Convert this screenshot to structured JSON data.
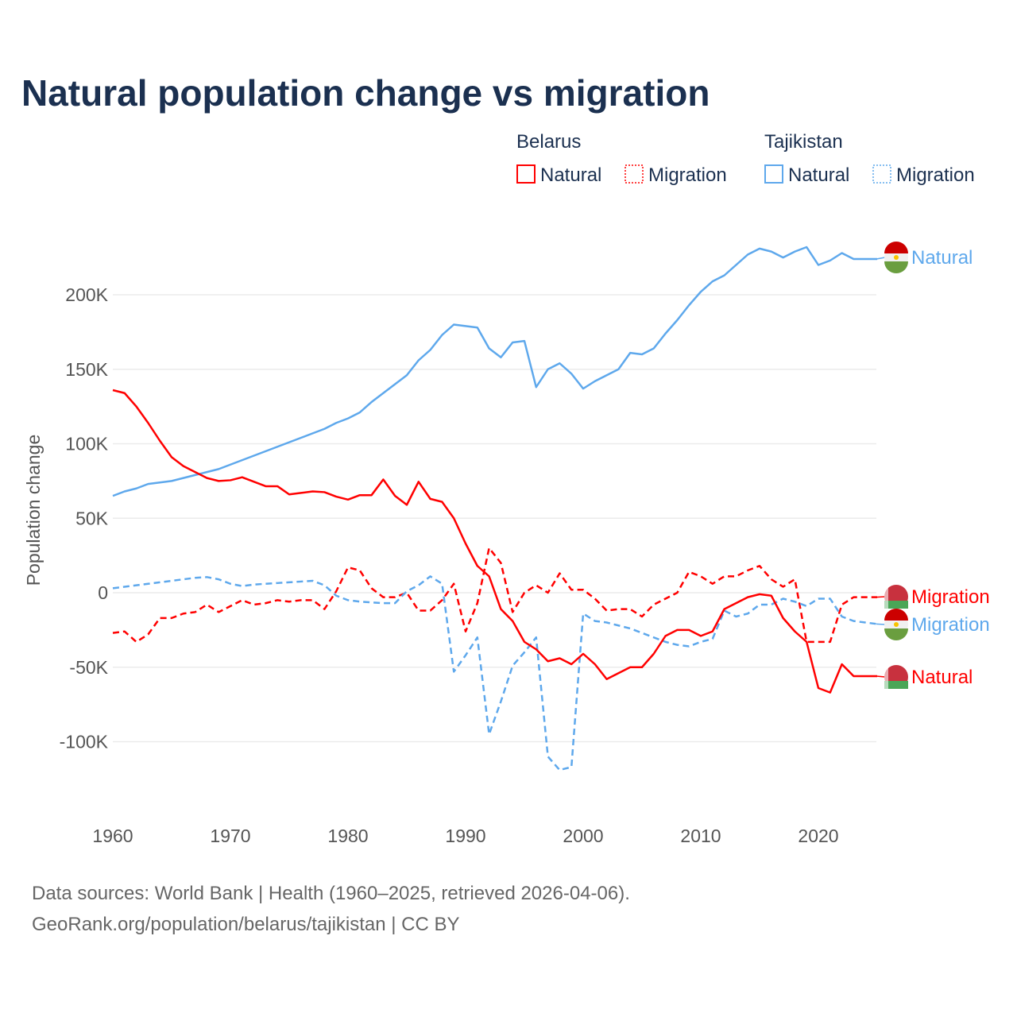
{
  "chart_data": {
    "type": "line",
    "title": "Natural population change vs migration",
    "ylabel": "Population change",
    "xlabel": "",
    "ylim": [
      -140000,
      240000
    ],
    "xlim": [
      1960,
      2025
    ],
    "yticks": [
      {
        "v": 200000,
        "label": "200K"
      },
      {
        "v": 150000,
        "label": "150K"
      },
      {
        "v": 100000,
        "label": "100K"
      },
      {
        "v": 50000,
        "label": "50K"
      },
      {
        "v": 0,
        "label": "0"
      },
      {
        "v": -50000,
        "label": "-50K"
      },
      {
        "v": -100000,
        "label": "-100K"
      }
    ],
    "xticks": [
      {
        "v": 1960,
        "label": "1960"
      },
      {
        "v": 1970,
        "label": "1970"
      },
      {
        "v": 1980,
        "label": "1980"
      },
      {
        "v": 1990,
        "label": "1990"
      },
      {
        "v": 2000,
        "label": "2000"
      },
      {
        "v": 2010,
        "label": "2010"
      },
      {
        "v": 2020,
        "label": "2020"
      }
    ],
    "grid": true,
    "legend": {
      "placement": "top-right",
      "groups": [
        {
          "country": "Belarus",
          "items": [
            "Natural",
            "Migration"
          ]
        },
        {
          "country": "Tajikistan",
          "items": [
            "Natural",
            "Migration"
          ]
        }
      ]
    },
    "x_start": 1960,
    "series": [
      {
        "name": "Tajikistan Natural",
        "country": "Tajikistan",
        "kind": "Natural",
        "end_label": "Natural",
        "color": "#5ea8ec",
        "dashed": false,
        "values": [
          65,
          68,
          70,
          73,
          74,
          75,
          77,
          79,
          81,
          83,
          86,
          89,
          92,
          95,
          98,
          101,
          104,
          107,
          110,
          114,
          117,
          121,
          128,
          134,
          140,
          146,
          156,
          163,
          173,
          180,
          179,
          178,
          164,
          158,
          168,
          169,
          138,
          150,
          154,
          147,
          137,
          142,
          146,
          150,
          161,
          160,
          164,
          174,
          183,
          193,
          202,
          209,
          213,
          220,
          227,
          231,
          229,
          225,
          229,
          232,
          220,
          223,
          228,
          224,
          224,
          224
        ]
      },
      {
        "name": "Belarus Migration",
        "country": "Belarus",
        "kind": "Migration",
        "end_label": "Migration",
        "color": "#ff0000",
        "dashed": true,
        "values": [
          -27,
          -26,
          -33,
          -28,
          -17,
          -17,
          -14,
          -13,
          -8,
          -13,
          -9,
          -5,
          -8,
          -7,
          -5,
          -6,
          -5,
          -5,
          -11,
          1,
          17,
          15,
          3,
          -3,
          -3,
          0,
          -12,
          -12,
          -5,
          6,
          -26,
          -7,
          30,
          20,
          -13,
          0,
          5,
          0,
          13,
          2,
          2,
          -4,
          -12,
          -11,
          -11,
          -16,
          -8,
          -4,
          0,
          14,
          11,
          6,
          11,
          11,
          15,
          18,
          9,
          4,
          9,
          -33,
          -33,
          -33,
          -8,
          -3,
          -3,
          -3
        ]
      },
      {
        "name": "Tajikistan Migration",
        "country": "Tajikistan",
        "kind": "Migration",
        "end_label": "Migration",
        "color": "#5ea8ec",
        "dashed": true,
        "values": [
          3,
          4,
          5,
          6,
          7,
          8,
          9,
          10,
          10.5,
          9,
          6,
          4.5,
          5.5,
          6,
          6.5,
          7,
          7.5,
          8,
          5,
          -2,
          -5,
          -6,
          -6.5,
          -7,
          -7,
          1,
          5,
          11,
          6,
          -53,
          -42,
          -30,
          -95,
          -73,
          -49,
          -40,
          -30,
          -110,
          -119,
          -117,
          -14,
          -19,
          -20,
          -22,
          -24,
          -27,
          -30,
          -33,
          -35,
          -36,
          -33,
          -31,
          -12,
          -16,
          -14,
          -8,
          -8,
          -4,
          -6,
          -9,
          -4,
          -4,
          -16,
          -19,
          -20,
          -21
        ]
      },
      {
        "name": "Belarus Natural",
        "country": "Belarus",
        "kind": "Natural",
        "end_label": "Natural",
        "color": "#ff0000",
        "dashed": false,
        "values": [
          136,
          134,
          125,
          114,
          102,
          91,
          85,
          81,
          77,
          75,
          75.5,
          77.5,
          74.5,
          71.5,
          71.5,
          66,
          67,
          68,
          67.5,
          64.5,
          62.5,
          65.5,
          65.5,
          76,
          65,
          59,
          74.5,
          63,
          61,
          50,
          33,
          18,
          11,
          -11,
          -19,
          -33,
          -38,
          -46,
          -44,
          -48,
          -41,
          -48,
          -58,
          -54,
          -50,
          -50,
          -41,
          -29,
          -25,
          -25,
          -29,
          -26,
          -11,
          -7,
          -3,
          -1,
          -2,
          -17,
          -26,
          -33,
          -64,
          -67,
          -48,
          -56,
          -56,
          -56
        ]
      }
    ],
    "value_unit": "thousands"
  },
  "footer": {
    "line1": "Data sources: World Bank | Health (1960–2025, retrieved 2026-04-06).",
    "line2": "GeoRank.org/population/belarus/tajikistan | CC BY"
  }
}
